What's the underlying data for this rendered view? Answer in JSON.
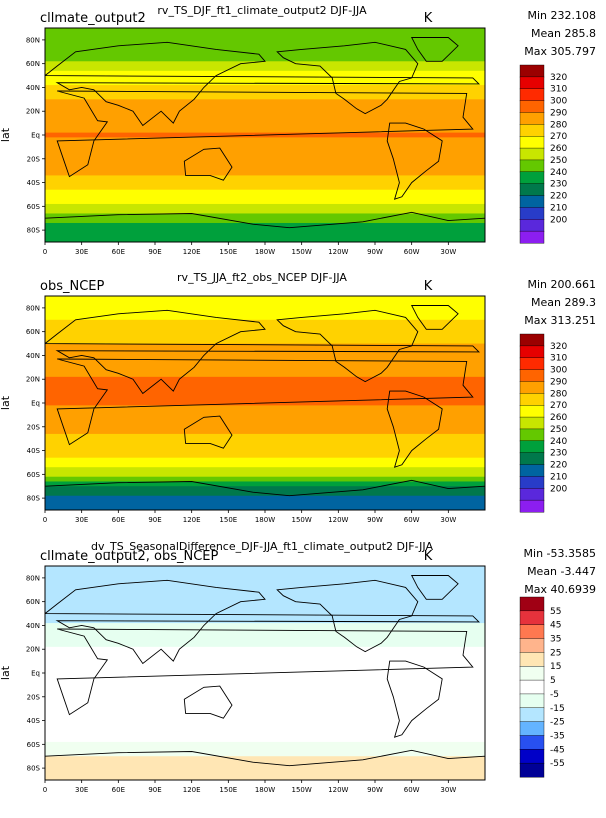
{
  "panels": [
    {
      "case": "cllmate_output2",
      "title": "rv_TS_DJF_ft1_climate_output2  DJF-JJA",
      "units": "K",
      "stats": {
        "min": "Min 232.108",
        "mean": "Mean 285.8",
        "max": "Max 305.797"
      },
      "ylabel": "lat",
      "colorbar": {
        "labels": [
          "320",
          "310",
          "300",
          "290",
          "280",
          "270",
          "260",
          "250",
          "240",
          "230",
          "220",
          "210",
          "200"
        ],
        "colors": [
          "#9b0000",
          "#e60000",
          "#ff2a00",
          "#ff6400",
          "#ffa000",
          "#ffd200",
          "#ffff00",
          "#c8e600",
          "#64c800",
          "#00a03c",
          "#00784b",
          "#0064a0",
          "#283cc8",
          "#5a28dc",
          "#8c1ef0"
        ]
      }
    },
    {
      "case": "obs_NCEP",
      "title": "rv_TS_JJA_ft2_obs_NCEP  DJF-JJA",
      "units": "K",
      "stats": {
        "min": "Min 200.661",
        "mean": "Mean 289.3",
        "max": "Max 313.251"
      },
      "ylabel": "lat",
      "colorbar": {
        "labels": [
          "320",
          "310",
          "300",
          "290",
          "280",
          "270",
          "260",
          "250",
          "240",
          "230",
          "220",
          "210",
          "200"
        ],
        "colors": [
          "#9b0000",
          "#e60000",
          "#ff2a00",
          "#ff6400",
          "#ffa000",
          "#ffd200",
          "#ffff00",
          "#c8e600",
          "#64c800",
          "#00a03c",
          "#00784b",
          "#0064a0",
          "#283cc8",
          "#5a28dc",
          "#8c1ef0"
        ]
      }
    },
    {
      "case": "cllmate_output2, obs_NCEP",
      "title": "dv_TS_SeasonalDifference_DJF-JJA_ft1_climate_output2  DJF-JJA",
      "units": "K",
      "stats": {
        "min": "Min -53.3585",
        "mean": "Mean -3.447",
        "max": "Max 40.6939"
      },
      "ylabel": "lat",
      "colorbar": {
        "labels": [
          "55",
          "45",
          "35",
          "25",
          "15",
          "5",
          "-5",
          "-15",
          "-25",
          "-35",
          "-45",
          "-55"
        ],
        "colors": [
          "#a00014",
          "#e6323c",
          "#ff7850",
          "#ffb48c",
          "#ffe6b4",
          "#f0fff0",
          "#ffffff",
          "#e6fff0",
          "#b4e6ff",
          "#64b4ff",
          "#2850f0",
          "#0000c8",
          "#000096"
        ]
      }
    }
  ],
  "lat_ticks": [
    "80N",
    "60N",
    "40N",
    "20N",
    "Eq",
    "20S",
    "40S",
    "60S",
    "80S"
  ],
  "lon_ticks": [
    "0",
    "30E",
    "60E",
    "90E",
    "120E",
    "150E",
    "180W",
    "150W",
    "120W",
    "90W",
    "60W",
    "30W"
  ],
  "chart_data": [
    {
      "type": "heatmap",
      "title": "rv_TS_DJF_ft1_climate_output2  DJF-JJA",
      "units": "K",
      "min": 232.108,
      "mean": 285.8,
      "max": 305.797,
      "clevels": [
        200,
        210,
        220,
        230,
        240,
        250,
        260,
        270,
        280,
        290,
        300,
        310,
        320
      ],
      "lat_profile": {
        "lat": [
          80,
          60,
          40,
          20,
          0,
          -20,
          -40,
          -60,
          -80
        ],
        "value": [
          250,
          262,
          282,
          296,
          300,
          299,
          285,
          268,
          245
        ]
      }
    },
    {
      "type": "heatmap",
      "title": "rv_TS_JJA_ft2_obs_NCEP  DJF-JJA",
      "units": "K",
      "min": 200.661,
      "mean": 289.3,
      "max": 313.251,
      "clevels": [
        200,
        210,
        220,
        230,
        240,
        250,
        260,
        270,
        280,
        290,
        300,
        310,
        320
      ],
      "lat_profile": {
        "lat": [
          80,
          60,
          40,
          20,
          0,
          -20,
          -40,
          -60,
          -80
        ],
        "value": [
          274,
          285,
          296,
          300,
          300,
          293,
          284,
          266,
          222
        ]
      }
    },
    {
      "type": "heatmap",
      "title": "dv_TS_SeasonalDifference_DJF-JJA_ft1_climate_output2  DJF-JJA",
      "units": "K",
      "min": -53.3585,
      "mean": -3.447,
      "max": 40.6939,
      "clevels": [
        -55,
        -45,
        -35,
        -25,
        -15,
        -5,
        5,
        15,
        25,
        35,
        45,
        55
      ],
      "lat_profile": {
        "lat": [
          80,
          60,
          40,
          20,
          0,
          -20,
          -40,
          -60,
          -80
        ],
        "value": [
          -24,
          -23,
          -14,
          -4,
          0,
          3,
          1,
          5,
          22
        ]
      }
    }
  ]
}
